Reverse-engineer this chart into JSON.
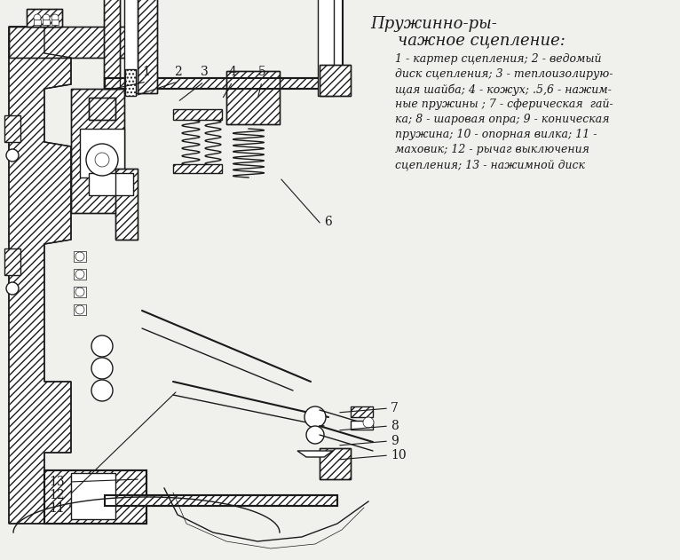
{
  "bg_color": "#f0f0ec",
  "title_line1": "Пружинно-ры-",
  "title_line2": "чажное сцепление:",
  "desc_lines": [
    "1 - картер сцепления; 2 - ведомый",
    "диск сцепления; 3 - теплоизолирую-",
    "щая шайба; 4 - кожух; .5,6 - нажим-",
    "ные пружины ; 7 - сферическая  гай-",
    "ка; 8 - шаровая опра; 9 - коническая",
    "пружина; 10 - опорная вилка; 11 -",
    "маховик; 12 - рычаг выключения",
    "сцепления; 13 - нажимной диск"
  ],
  "fig_width": 7.66,
  "fig_height": 6.31,
  "dpi": 100
}
